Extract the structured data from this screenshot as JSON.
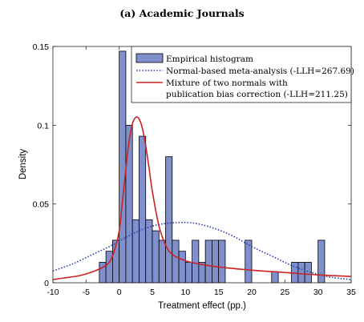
{
  "chart_data": {
    "type": "bar",
    "title": "(a) Academic Journals",
    "xlabel": "Treatment effect (pp.)",
    "ylabel": "Density",
    "xlim": [
      -10,
      35
    ],
    "ylim": [
      0,
      0.15
    ],
    "xticks": [
      "-10",
      "-5",
      "0",
      "5",
      "10",
      "15",
      "20",
      "25",
      "30",
      "35"
    ],
    "yticks": [
      "0",
      "0.05",
      "0.1",
      "0.15"
    ],
    "grid": false,
    "legend_position": "top-right",
    "bin_width": 1,
    "bins": [
      {
        "x0": -3,
        "x1": -2,
        "density": 0.013
      },
      {
        "x0": -2,
        "x1": -1,
        "density": 0.02
      },
      {
        "x0": -1,
        "x1": 0,
        "density": 0.027
      },
      {
        "x0": 0,
        "x1": 1,
        "density": 0.147
      },
      {
        "x0": 1,
        "x1": 2,
        "density": 0.1
      },
      {
        "x0": 2,
        "x1": 3,
        "density": 0.04
      },
      {
        "x0": 3,
        "x1": 4,
        "density": 0.093
      },
      {
        "x0": 4,
        "x1": 5,
        "density": 0.04
      },
      {
        "x0": 5,
        "x1": 6,
        "density": 0.033
      },
      {
        "x0": 6,
        "x1": 7,
        "density": 0.027
      },
      {
        "x0": 7,
        "x1": 8,
        "density": 0.08
      },
      {
        "x0": 8,
        "x1": 9,
        "density": 0.027
      },
      {
        "x0": 9,
        "x1": 10,
        "density": 0.02
      },
      {
        "x0": 10,
        "x1": 11,
        "density": 0.013
      },
      {
        "x0": 11,
        "x1": 12,
        "density": 0.027
      },
      {
        "x0": 12,
        "x1": 13,
        "density": 0.013
      },
      {
        "x0": 13,
        "x1": 14,
        "density": 0.027
      },
      {
        "x0": 14,
        "x1": 15,
        "density": 0.027
      },
      {
        "x0": 15,
        "x1": 16,
        "density": 0.027
      },
      {
        "x0": 19,
        "x1": 20,
        "density": 0.027
      },
      {
        "x0": 23,
        "x1": 24,
        "density": 0.007
      },
      {
        "x0": 26,
        "x1": 27,
        "density": 0.013
      },
      {
        "x0": 27,
        "x1": 28,
        "density": 0.013
      },
      {
        "x0": 28,
        "x1": 29,
        "density": 0.013
      },
      {
        "x0": 30,
        "x1": 31,
        "density": 0.027
      }
    ],
    "series": [
      {
        "name": "Empirical histogram",
        "kind": "histogram",
        "color": "#8090cc",
        "edge_color": "#000000"
      },
      {
        "name": "Normal-based meta-analysis (-LLH=267.69)",
        "kind": "density-curve",
        "color": "#3344aa",
        "line_style": "dotted",
        "x": [
          -10,
          -7,
          -4,
          -1,
          2,
          5,
          8,
          11,
          14,
          17,
          20,
          23,
          26,
          29,
          32,
          35
        ],
        "y": [
          0.0075,
          0.012,
          0.018,
          0.024,
          0.031,
          0.036,
          0.038,
          0.038,
          0.035,
          0.03,
          0.023,
          0.017,
          0.011,
          0.0065,
          0.0035,
          0.002
        ]
      },
      {
        "name_lines": [
          "Mixture of two normals with",
          "publication bias correction (-LLH=211.25)"
        ],
        "kind": "density-curve",
        "color": "#cc2222",
        "line_style": "solid",
        "x": [
          -10,
          -6,
          -4,
          -2,
          -1,
          0,
          0.5,
          1,
          1.5,
          2,
          2.5,
          3,
          3.5,
          4,
          4.5,
          5,
          6,
          7,
          8,
          10,
          12,
          15,
          20,
          25,
          30,
          35
        ],
        "y": [
          0.002,
          0.0045,
          0.007,
          0.011,
          0.017,
          0.033,
          0.052,
          0.072,
          0.09,
          0.101,
          0.105,
          0.104,
          0.098,
          0.087,
          0.073,
          0.058,
          0.036,
          0.024,
          0.018,
          0.014,
          0.012,
          0.01,
          0.008,
          0.0065,
          0.005,
          0.004
        ]
      }
    ]
  }
}
